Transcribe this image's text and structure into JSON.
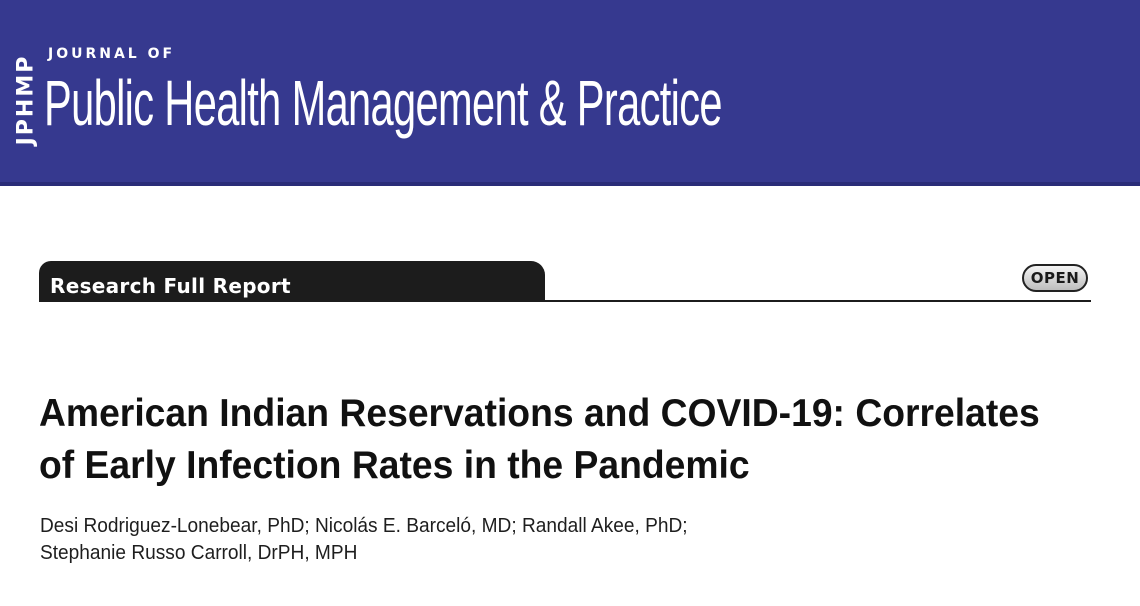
{
  "header": {
    "logo_abbrev": "JPHMP",
    "journal_of": "JOURNAL OF",
    "journal_title": "Public Health Management & Practice",
    "banner_color": "#36398f"
  },
  "section": {
    "label": "Research Full Report",
    "badge": "OPEN"
  },
  "article": {
    "title_lines": [
      "American Indian Reservations and COVID-19: Correlates",
      "of Early Infection Rates in the Pandemic"
    ],
    "author_lines": [
      "Desi Rodriguez-Lonebear, PhD; Nicolás E. Barceló, MD; Randall Akee, PhD;",
      "Stephanie Russo Carroll, DrPH, MPH"
    ]
  }
}
